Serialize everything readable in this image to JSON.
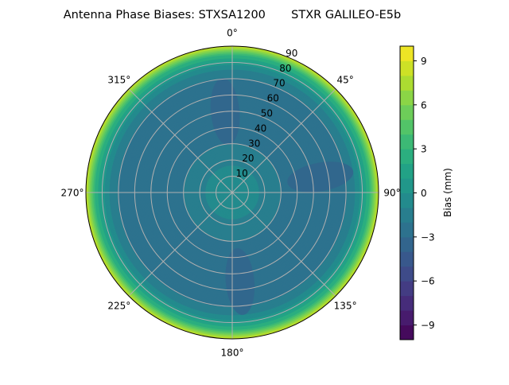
{
  "chart_data": {
    "type": "heatmap",
    "projection": "polar",
    "title": "Antenna Phase Biases: STXSA1200       STXR GALILEO-E5b",
    "theta_direction": "clockwise",
    "theta_zero": "top",
    "theta_tick_labels": [
      "0°",
      "45°",
      "90°",
      "135°",
      "180°",
      "225°",
      "270°",
      "315°"
    ],
    "theta_ticks": [
      0,
      45,
      90,
      135,
      180,
      225,
      270,
      315
    ],
    "radial_tick_labels": [
      "10",
      "20",
      "30",
      "40",
      "50",
      "60",
      "70",
      "80",
      "90"
    ],
    "radial_ticks": [
      10,
      20,
      30,
      40,
      50,
      60,
      70,
      80,
      90
    ],
    "rlim": [
      0,
      90
    ],
    "grid": true,
    "colormap": "viridis",
    "colorbar": {
      "label": "Bias (mm)",
      "range": [
        -10,
        10
      ],
      "levels_step": 1,
      "tick_labels": [
        "−9",
        "−6",
        "−3",
        "0",
        "3",
        "6",
        "9"
      ],
      "ticks": [
        -9,
        -6,
        -3,
        0,
        3,
        6,
        9
      ]
    },
    "radial_profile": {
      "zenith_deg": [
        0,
        10,
        20,
        30,
        40,
        50,
        60,
        70,
        75,
        80,
        84,
        87,
        90
      ],
      "bias_mm": [
        -0.5,
        -0.6,
        -1.2,
        -2.0,
        -2.5,
        -2.6,
        -2.5,
        -2.2,
        -1.2,
        0.5,
        2.5,
        5.0,
        8.5
      ]
    },
    "low_regions": [
      {
        "azimuth_deg": 80,
        "zenith_deg": 55,
        "bias_mm": -3.5
      },
      {
        "azimuth_deg": 355,
        "zenith_deg": 50,
        "bias_mm": -3.5
      },
      {
        "azimuth_deg": 175,
        "zenith_deg": 55,
        "bias_mm": -3.2
      }
    ]
  }
}
